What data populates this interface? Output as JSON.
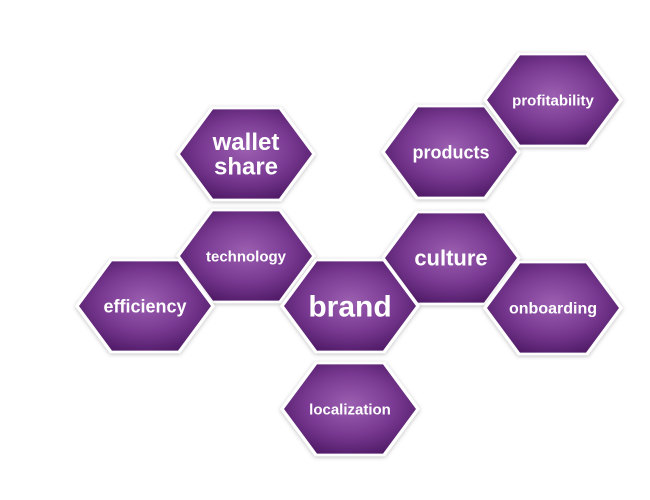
{
  "colors": {
    "hex_light": "#9b5fb0",
    "hex_mid": "#7a3a93",
    "hex_dark": "#4f1a66",
    "outline": "#ffffff",
    "text": "#ffffff"
  },
  "hexagons": [
    {
      "id": "wallet-share",
      "lines": [
        "wallet",
        "share"
      ]
    },
    {
      "id": "products",
      "lines": [
        "products"
      ]
    },
    {
      "id": "profitability",
      "lines": [
        "profitability"
      ]
    },
    {
      "id": "technology",
      "lines": [
        "technology"
      ]
    },
    {
      "id": "culture",
      "lines": [
        "culture"
      ]
    },
    {
      "id": "efficiency",
      "lines": [
        "efficiency"
      ]
    },
    {
      "id": "brand",
      "lines": [
        "brand"
      ]
    },
    {
      "id": "onboarding",
      "lines": [
        "onboarding"
      ]
    },
    {
      "id": "localization",
      "lines": [
        "localization"
      ]
    }
  ]
}
